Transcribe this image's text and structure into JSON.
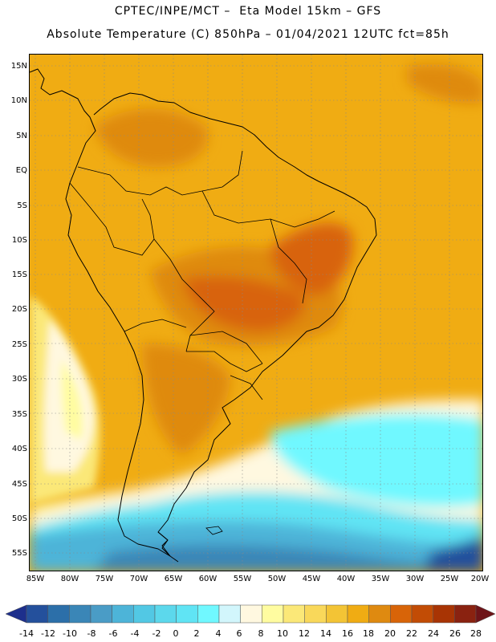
{
  "title": {
    "line1": "CPTEC/INPE/MCT –  Eta Model 15km – GFS",
    "line2": "Absolute Temperature (C) 850hPa – 01/04/2021 12UTC fct=85h"
  },
  "map": {
    "lat_labels": [
      "15N",
      "10N",
      "5N",
      "EQ",
      "5S",
      "10S",
      "15S",
      "20S",
      "25S",
      "30S",
      "35S",
      "40S",
      "45S",
      "50S",
      "55S"
    ],
    "lon_labels": [
      "85W",
      "80W",
      "75W",
      "70W",
      "65W",
      "60W",
      "55W",
      "50W",
      "45W",
      "40W",
      "35W",
      "30W",
      "25W",
      "20W"
    ],
    "background_color": "#f0ac13"
  },
  "colorbar": {
    "labels": [
      "-14",
      "-12",
      "-10",
      "-8",
      "-6",
      "-4",
      "-2",
      "0",
      "2",
      "4",
      "6",
      "8",
      "10",
      "12",
      "14",
      "16",
      "18",
      "20",
      "22",
      "24",
      "26",
      "28"
    ],
    "colors": [
      "#1d2f8c",
      "#24509c",
      "#2c6fa9",
      "#3a86b7",
      "#4a9cc6",
      "#4db4d8",
      "#52c8e4",
      "#5cd8ec",
      "#60e4f4",
      "#70f8ff",
      "#d2f6fc",
      "#fff8e0",
      "#fffca0",
      "#fbe878",
      "#f9d85a",
      "#f3c435",
      "#f0ac13",
      "#df8a10",
      "#d86408",
      "#c24c05",
      "#a83404",
      "#8a2210",
      "#6e1418"
    ]
  }
}
